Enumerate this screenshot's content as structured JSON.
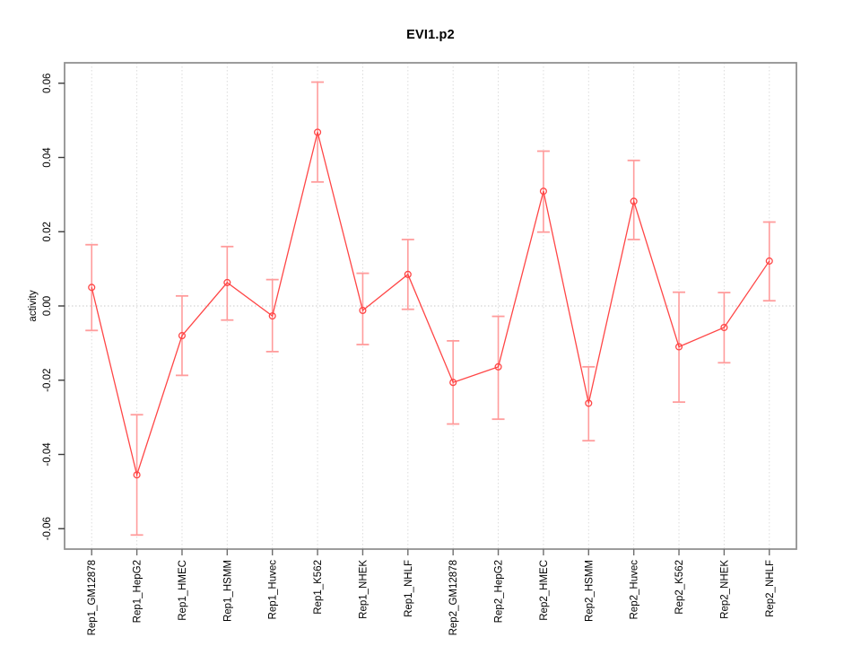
{
  "chart_data": {
    "type": "line",
    "title": "EVI1.p2",
    "xlabel": "",
    "ylabel": "activity",
    "legend": "none",
    "grid": "vertical dotted gridline at each category; dotted horizontal line at y=0",
    "ylim": [
      -0.0655,
      0.0655
    ],
    "yticks": [
      -0.06,
      -0.04,
      -0.02,
      0,
      0.02,
      0.04,
      0.06
    ],
    "ytick_labels": [
      "-0.06",
      "-0.04",
      "-0.02",
      "0.00",
      "0.02",
      "0.04",
      "0.06"
    ],
    "categories": [
      "Rep1_GM12878",
      "Rep1_HepG2",
      "Rep1_HMEC",
      "Rep1_HSMM",
      "Rep1_Huvec",
      "Rep1_K562",
      "Rep1_NHEK",
      "Rep1_NHLF",
      "Rep2_GM12878",
      "Rep2_HepG2",
      "Rep2_HMEC",
      "Rep2_HSMM",
      "Rep2_Huvec",
      "Rep2_K562",
      "Rep2_NHEK",
      "Rep2_NHLF"
    ],
    "series": [
      {
        "name": "activity",
        "marker": "open-circle",
        "values": [
          0.005,
          -0.0455,
          -0.008,
          0.0063,
          -0.0027,
          0.0468,
          -0.0012,
          0.0085,
          -0.0206,
          -0.0164,
          0.0309,
          -0.0262,
          0.0282,
          -0.011,
          -0.0058,
          0.0121
        ],
        "error_high": [
          0.0165,
          -0.0293,
          0.0027,
          0.016,
          0.0071,
          0.0603,
          0.0088,
          0.0179,
          -0.0094,
          -0.0028,
          0.0417,
          -0.0164,
          0.0392,
          0.0037,
          0.0036,
          0.0226
        ],
        "error_low": [
          -0.0066,
          -0.0617,
          -0.0187,
          -0.0038,
          -0.0123,
          0.0334,
          -0.0104,
          -0.0009,
          -0.0318,
          -0.0305,
          0.0199,
          -0.0363,
          0.0179,
          -0.0259,
          -0.0153,
          0.0014
        ]
      }
    ],
    "colors": {
      "line": "#ff4646",
      "marker": "#ff4646",
      "error_bar": "#ff9c9c",
      "plot_border": "#929292",
      "grid_line": "#dcdcdc",
      "zero_line": "#c8c8c8",
      "tick": "#6e6e6e",
      "text": "#000000"
    }
  }
}
